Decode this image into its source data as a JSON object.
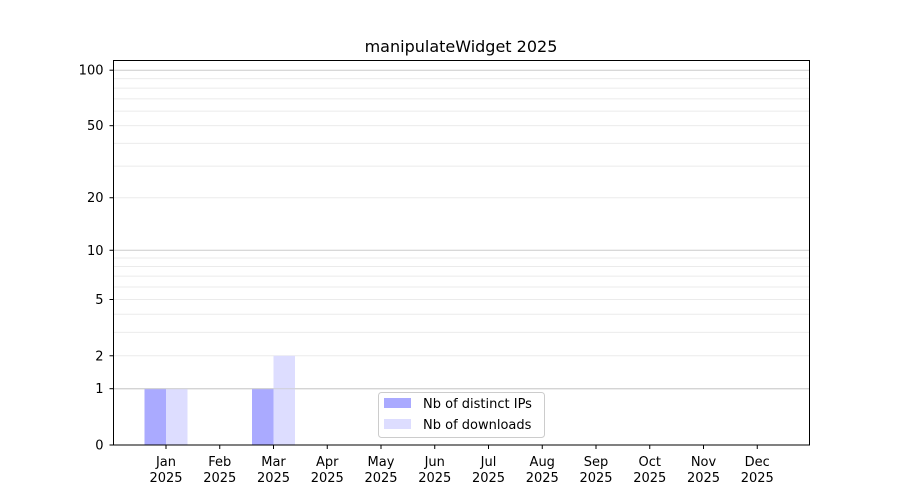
{
  "chart_data": {
    "type": "bar",
    "title": "manipulateWidget 2025",
    "xlabel": "",
    "ylabel": "",
    "yscale": "log(y+1)",
    "ylim": [
      0,
      113
    ],
    "y_ticks": [
      0,
      1,
      2,
      5,
      10,
      20,
      50,
      100
    ],
    "grid": "horizontal, major at 1/10/100 and minor lines",
    "categories": [
      "Jan\n2025",
      "Feb\n2025",
      "Mar\n2025",
      "Apr\n2025",
      "May\n2025",
      "Jun\n2025",
      "Jul\n2025",
      "Aug\n2025",
      "Sep\n2025",
      "Oct\n2025",
      "Nov\n2025",
      "Dec\n2025"
    ],
    "series": [
      {
        "name": "Nb of distinct IPs",
        "color": "#aaaaff",
        "values": [
          1,
          0,
          1,
          0,
          0,
          0,
          0,
          0,
          0,
          0,
          0,
          0
        ]
      },
      {
        "name": "Nb of downloads",
        "color": "#ddddff",
        "values": [
          1,
          0,
          2,
          0,
          0,
          0,
          0,
          0,
          0,
          0,
          0,
          0
        ]
      }
    ],
    "legend": "bottom-center"
  }
}
